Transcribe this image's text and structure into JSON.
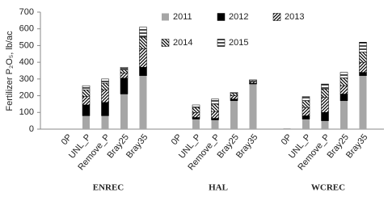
{
  "chart_data": {
    "type": "stacked-bar",
    "ylabel": "Fertilizer P₂O₅, lb/ac",
    "groups": [
      "ENREC",
      "HAL",
      "WCREC"
    ],
    "categories": [
      "0P",
      "UNL_P",
      "Remove_P",
      "Bray25",
      "Bray35",
      "0P",
      "UNL_P",
      "Remove_P",
      "Bray25",
      "Bray35",
      "0P",
      "UNL_P",
      "Remove_P",
      "Bray25",
      "Bray35"
    ],
    "series": [
      {
        "name": "2011",
        "color": "#a6a6a6",
        "pattern": "solid",
        "values": [
          0,
          80,
          80,
          210,
          320,
          0,
          60,
          55,
          170,
          270,
          5,
          60,
          50,
          170,
          320
        ]
      },
      {
        "name": "2012",
        "color": "#000000",
        "pattern": "solid",
        "values": [
          0,
          65,
          80,
          95,
          50,
          0,
          10,
          10,
          10,
          5,
          0,
          20,
          50,
          40,
          20
        ]
      },
      {
        "name": "2013",
        "color": "#000000",
        "pattern": "diagonal",
        "values": [
          0,
          50,
          75,
          30,
          110,
          0,
          30,
          40,
          20,
          10,
          0,
          50,
          90,
          50,
          60
        ]
      },
      {
        "name": "2014",
        "color": "#000000",
        "pattern": "anti-diagonal",
        "values": [
          0,
          40,
          40,
          20,
          70,
          0,
          30,
          45,
          15,
          5,
          0,
          40,
          50,
          45,
          60
        ]
      },
      {
        "name": "2015",
        "color": "#000000",
        "pattern": "horizontal",
        "values": [
          0,
          25,
          25,
          15,
          60,
          0,
          15,
          30,
          5,
          5,
          0,
          25,
          30,
          35,
          60
        ]
      }
    ],
    "ylim": [
      0,
      700
    ],
    "yticks": [
      0,
      100,
      200,
      300,
      400,
      500,
      600,
      700
    ],
    "grid": false,
    "legend": "top"
  }
}
